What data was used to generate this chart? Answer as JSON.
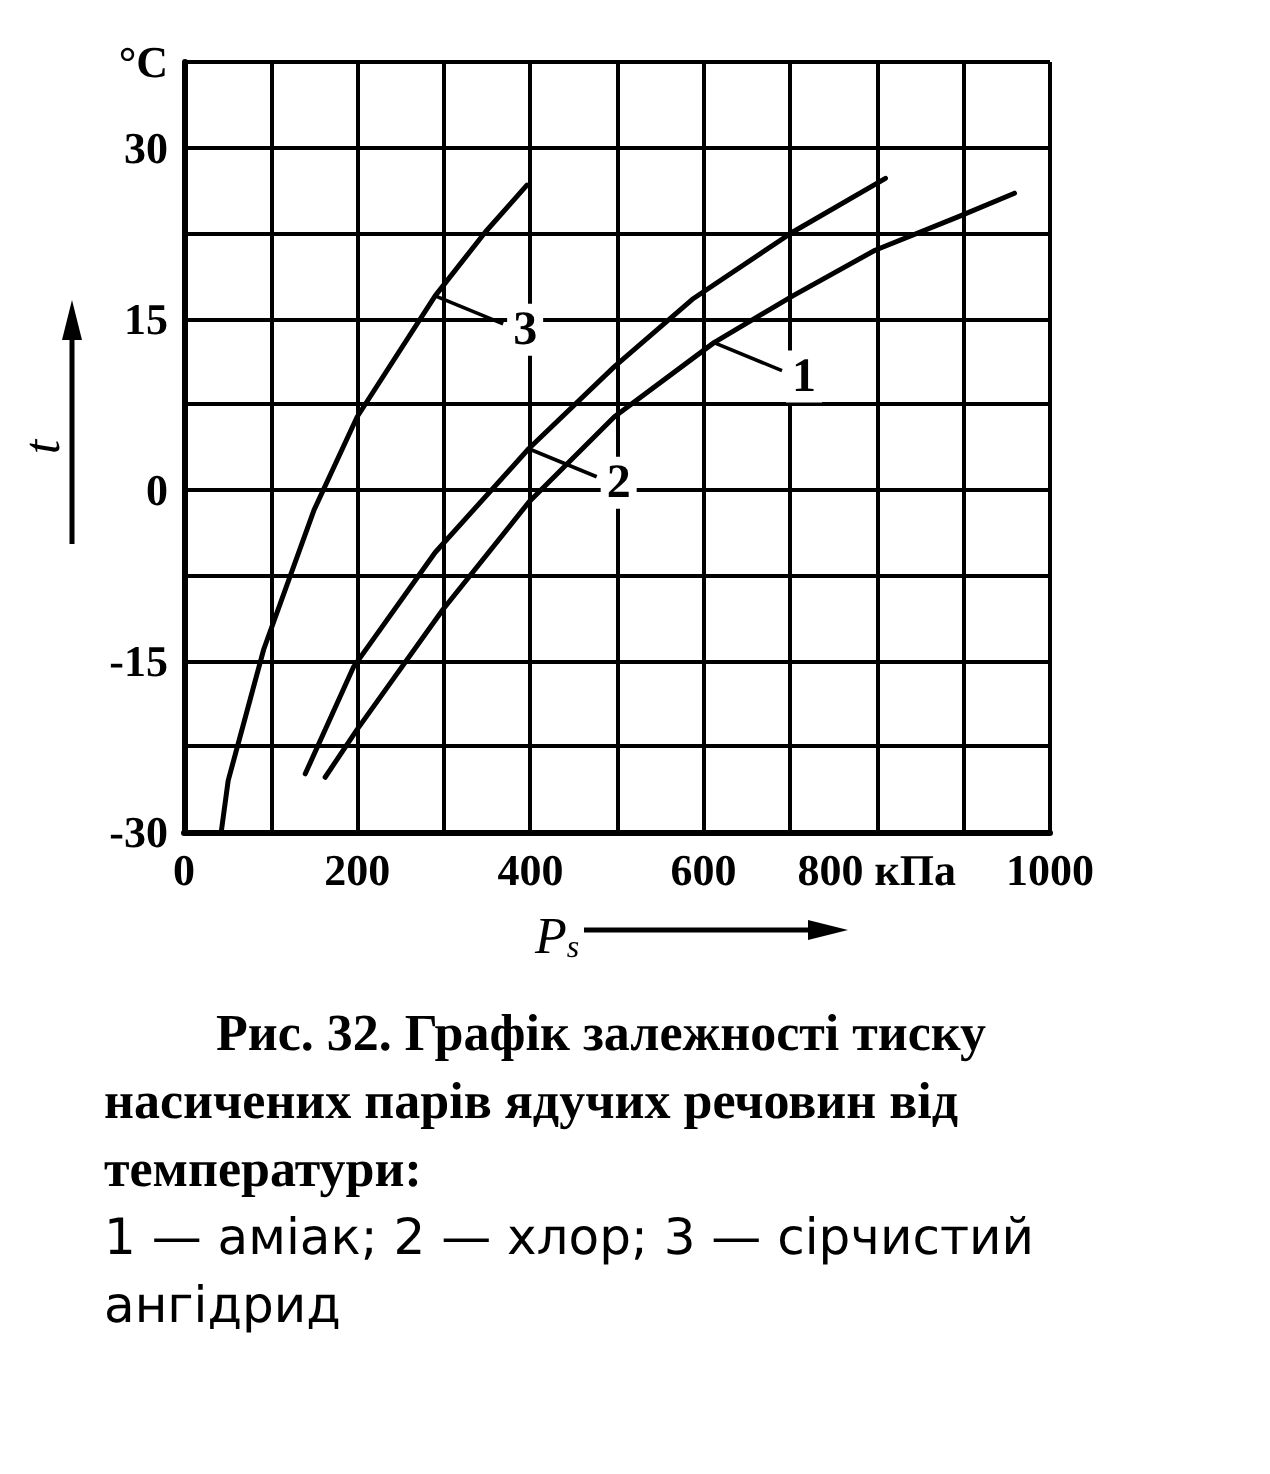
{
  "chart_data": {
    "type": "line",
    "title": "Рис. 32. Графік залежності тиску насичених парів ядучих речовин від температури:",
    "subtitle": "1 — аміак; 2 — хлор; 3 — сірчистий ангідрид",
    "xlabel": "P$_{s}$",
    "ylabel": "t",
    "xlim": [
      0,
      1000
    ],
    "xticks": [
      0,
      {
        "value": 100,
        "label": null
      },
      200,
      {
        "value": 300,
        "label": null
      },
      400,
      {
        "value": 500,
        "label": null
      },
      600,
      {
        "value": 700,
        "label": null
      },
      {
        "value": 800,
        "label": "800 кПа"
      },
      {
        "value": 900,
        "label": null
      },
      1000
    ],
    "ylim": [
      -30,
      37.5
    ],
    "yticks": [
      -30,
      {
        "value": -22.5,
        "label": null
      },
      -15,
      {
        "value": -7.5,
        "label": null
      },
      0,
      {
        "value": 7.5,
        "label": null
      },
      15,
      {
        "value": 22.5,
        "label": null
      },
      30,
      {
        "value": 37.5,
        "label": "°C"
      }
    ],
    "grid": true,
    "marker": "none",
    "line_style": "solid",
    "series": [
      {
        "color": "#000000",
        "x": [
          163,
          200,
          299,
          398,
          497,
          612,
          703,
          798,
          893,
          959
        ],
        "values": [
          -25.2,
          -21,
          -10.5,
          -1.1,
          6.4,
          12.9,
          17,
          21,
          23.9,
          26
        ]
      },
      {
        "color": "#000000",
        "x": [
          140,
          196,
          290,
          398,
          497,
          587,
          703,
          810
        ],
        "values": [
          -24.9,
          -15.5,
          -5.5,
          3.6,
          10.8,
          16.7,
          22.6,
          27.3
        ]
      },
      {
        "color": "#000000",
        "x": [
          43,
          51,
          92,
          150,
          200,
          290,
          348,
          396
        ],
        "values": [
          -30,
          -25.5,
          -14,
          -1.8,
          6.4,
          17,
          22.6,
          26.7
        ]
      }
    ],
    "annotations": [
      {
        "text": "1",
        "x": 612,
        "y": 12.9
      },
      {
        "text": "2",
        "x": 398,
        "y": 3.6
      },
      {
        "text": "3",
        "x": 290,
        "y": 17
      }
    ]
  }
}
